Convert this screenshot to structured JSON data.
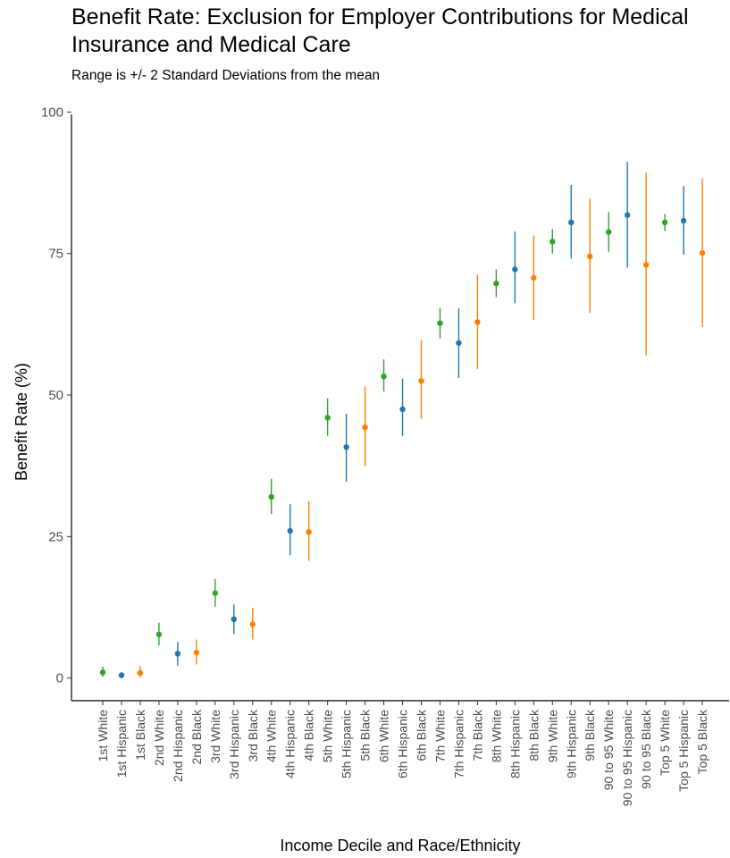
{
  "chart_data": {
    "type": "scatter",
    "title": "Benefit Rate: Exclusion for Employer Contributions for Medical Insurance and Medical Care",
    "subtitle": "Range is +/- 2 Standard Deviations from the mean",
    "xlabel": "Income Decile and Race/Ethnicity",
    "ylabel": "Benefit Rate (%)",
    "ylim": [
      -4,
      104
    ],
    "yticks": [
      0,
      25,
      50,
      75,
      100
    ],
    "grid": false,
    "colors": {
      "White": "#33a02c",
      "Hispanic": "#1f78b4",
      "Black": "#ff7f00"
    },
    "points": [
      {
        "label": "1st White",
        "group": "White",
        "mean": 1.0,
        "low": 0.2,
        "high": 2.0
      },
      {
        "label": "1st Hispanic",
        "group": "Hispanic",
        "mean": 0.5,
        "low": 0.0,
        "high": 1.0
      },
      {
        "label": "1st Black",
        "group": "Black",
        "mean": 0.9,
        "low": 0.1,
        "high": 2.1
      },
      {
        "label": "2nd White",
        "group": "White",
        "mean": 7.7,
        "low": 5.8,
        "high": 9.8
      },
      {
        "label": "2nd Hispanic",
        "group": "Hispanic",
        "mean": 4.3,
        "low": 2.2,
        "high": 6.4
      },
      {
        "label": "2nd Black",
        "group": "Black",
        "mean": 4.5,
        "low": 2.4,
        "high": 6.8
      },
      {
        "label": "3rd White",
        "group": "White",
        "mean": 15.0,
        "low": 12.6,
        "high": 17.5
      },
      {
        "label": "3rd Hispanic",
        "group": "Hispanic",
        "mean": 10.4,
        "low": 7.8,
        "high": 13.0
      },
      {
        "label": "3rd Black",
        "group": "Black",
        "mean": 9.5,
        "low": 6.8,
        "high": 12.4
      },
      {
        "label": "4th White",
        "group": "White",
        "mean": 32.0,
        "low": 29.0,
        "high": 35.2
      },
      {
        "label": "4th Hispanic",
        "group": "Hispanic",
        "mean": 26.0,
        "low": 21.7,
        "high": 30.7
      },
      {
        "label": "4th Black",
        "group": "Black",
        "mean": 25.8,
        "low": 20.7,
        "high": 31.3
      },
      {
        "label": "5th White",
        "group": "White",
        "mean": 46.0,
        "low": 42.8,
        "high": 49.4
      },
      {
        "label": "5th Hispanic",
        "group": "Hispanic",
        "mean": 40.8,
        "low": 34.7,
        "high": 46.7
      },
      {
        "label": "5th Black",
        "group": "Black",
        "mean": 44.3,
        "low": 37.5,
        "high": 51.5
      },
      {
        "label": "6th White",
        "group": "White",
        "mean": 53.3,
        "low": 50.6,
        "high": 56.3
      },
      {
        "label": "6th Hispanic",
        "group": "Hispanic",
        "mean": 47.5,
        "low": 42.8,
        "high": 52.9
      },
      {
        "label": "6th Black",
        "group": "Black",
        "mean": 52.5,
        "low": 45.8,
        "high": 59.7
      },
      {
        "label": "7th White",
        "group": "White",
        "mean": 62.7,
        "low": 60.0,
        "high": 65.4
      },
      {
        "label": "7th Hispanic",
        "group": "Hispanic",
        "mean": 59.2,
        "low": 53.0,
        "high": 65.3
      },
      {
        "label": "7th Black",
        "group": "Black",
        "mean": 62.9,
        "low": 54.6,
        "high": 71.3
      },
      {
        "label": "8th White",
        "group": "White",
        "mean": 69.7,
        "low": 67.3,
        "high": 72.2
      },
      {
        "label": "8th Hispanic",
        "group": "Hispanic",
        "mean": 72.2,
        "low": 66.2,
        "high": 78.9
      },
      {
        "label": "8th Black",
        "group": "Black",
        "mean": 70.7,
        "low": 63.3,
        "high": 78.2
      },
      {
        "label": "9th White",
        "group": "White",
        "mean": 77.1,
        "low": 75.0,
        "high": 79.3
      },
      {
        "label": "9th Hispanic",
        "group": "Hispanic",
        "mean": 80.5,
        "low": 74.1,
        "high": 87.1
      },
      {
        "label": "9th Black",
        "group": "Black",
        "mean": 74.5,
        "low": 64.5,
        "high": 84.7
      },
      {
        "label": "90 to 95 White",
        "group": "White",
        "mean": 78.8,
        "low": 75.3,
        "high": 82.3
      },
      {
        "label": "90 to 95 Hispanic",
        "group": "Hispanic",
        "mean": 81.8,
        "low": 72.5,
        "high": 91.2
      },
      {
        "label": "90 to 95 Black",
        "group": "Black",
        "mean": 73.0,
        "low": 57.0,
        "high": 89.3
      },
      {
        "label": "Top 5 White",
        "group": "White",
        "mean": 80.5,
        "low": 79.0,
        "high": 82.0
      },
      {
        "label": "Top 5 Hispanic",
        "group": "Hispanic",
        "mean": 80.8,
        "low": 74.8,
        "high": 86.9
      },
      {
        "label": "Top 5 Black",
        "group": "Black",
        "mean": 75.1,
        "low": 62.0,
        "high": 88.3
      }
    ]
  }
}
